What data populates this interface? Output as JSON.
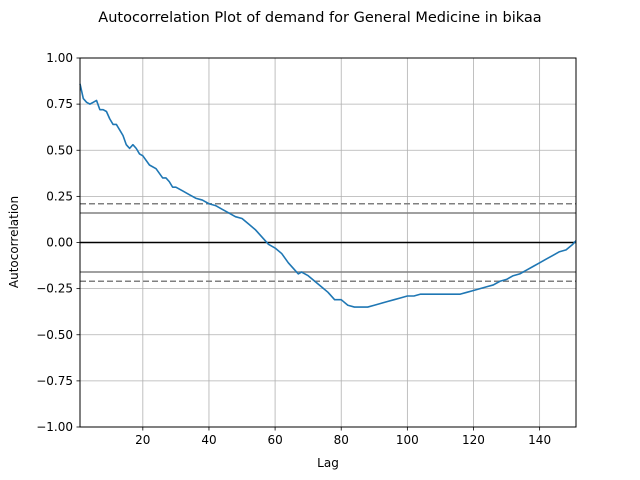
{
  "chart_data": {
    "type": "line",
    "title": "Autocorrelation Plot of demand for General Medicine in bikaa",
    "xlabel": "Lag",
    "ylabel": "Autocorrelation",
    "xlim": [
      1,
      151
    ],
    "ylim": [
      -1.0,
      1.0
    ],
    "x_ticks": [
      20,
      40,
      60,
      80,
      100,
      120,
      140
    ],
    "y_ticks": [
      -1.0,
      -0.75,
      -0.5,
      -0.25,
      0.0,
      0.25,
      0.5,
      0.75,
      1.0
    ],
    "x_tick_labels": [
      "20",
      "40",
      "60",
      "80",
      "100",
      "120",
      "140"
    ],
    "y_tick_labels": [
      "−1.00",
      "−0.75",
      "−0.50",
      "−0.25",
      "0.00",
      "0.25",
      "0.50",
      "0.75",
      "1.00"
    ],
    "grid": true,
    "reference_lines": {
      "zero": 0.0,
      "confidence_95": 0.16,
      "confidence_99": 0.21
    },
    "series": [
      {
        "color": "#1f77b4",
        "x": [
          1,
          2,
          3,
          4,
          5,
          6,
          7,
          8,
          9,
          10,
          11,
          12,
          13,
          14,
          15,
          16,
          17,
          18,
          19,
          20,
          22,
          24,
          26,
          27,
          28,
          29,
          30,
          32,
          34,
          36,
          38,
          40,
          42,
          44,
          46,
          48,
          50,
          52,
          54,
          56,
          58,
          60,
          62,
          64,
          66,
          67,
          68,
          70,
          72,
          74,
          76,
          78,
          80,
          82,
          84,
          86,
          88,
          90,
          92,
          94,
          96,
          98,
          100,
          102,
          104,
          106,
          108,
          110,
          112,
          114,
          116,
          118,
          120,
          122,
          124,
          126,
          128,
          130,
          132,
          134,
          136,
          138,
          140,
          142,
          144,
          146,
          148,
          150,
          151
        ],
        "y": [
          0.86,
          0.78,
          0.76,
          0.75,
          0.76,
          0.77,
          0.72,
          0.72,
          0.71,
          0.67,
          0.64,
          0.64,
          0.61,
          0.58,
          0.53,
          0.51,
          0.53,
          0.51,
          0.48,
          0.47,
          0.42,
          0.4,
          0.35,
          0.35,
          0.33,
          0.3,
          0.3,
          0.28,
          0.26,
          0.24,
          0.23,
          0.21,
          0.2,
          0.18,
          0.16,
          0.14,
          0.13,
          0.1,
          0.07,
          0.03,
          -0.01,
          -0.03,
          -0.06,
          -0.11,
          -0.15,
          -0.17,
          -0.16,
          -0.18,
          -0.21,
          -0.24,
          -0.27,
          -0.31,
          -0.31,
          -0.34,
          -0.35,
          -0.35,
          -0.35,
          -0.34,
          -0.33,
          -0.32,
          -0.31,
          -0.3,
          -0.29,
          -0.29,
          -0.28,
          -0.28,
          -0.28,
          -0.28,
          -0.28,
          -0.28,
          -0.28,
          -0.27,
          -0.26,
          -0.25,
          -0.24,
          -0.23,
          -0.21,
          -0.2,
          -0.18,
          -0.17,
          -0.15,
          -0.13,
          -0.11,
          -0.09,
          -0.07,
          -0.05,
          -0.04,
          -0.01,
          0.01
        ]
      }
    ]
  }
}
